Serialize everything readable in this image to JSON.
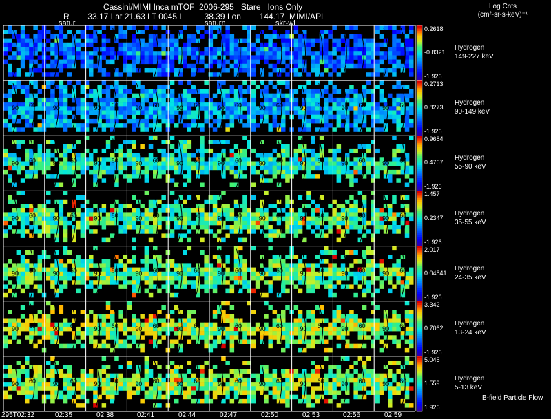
{
  "header": {
    "line1": "Cassini/MIMI Inca mTOF  2006-295   Stare   Ions Only",
    "line2": "R        33.17 Lat 21.63 LT 0045 L         38.39 Lon        144.17  MIMI/APL",
    "annotations": [
      "satur",
      "saturn",
      "skr-wl"
    ]
  },
  "units": {
    "line1": "Log Cnts",
    "line2": "(cm²-sr-s-keV)⁻¹"
  },
  "footer_note": "B-field Particle Flow",
  "chart_data": {
    "type": "heatmap",
    "time_labels": [
      "295T02:32",
      "02:35",
      "02:38",
      "02:41",
      "02:44",
      "02:47",
      "02:50",
      "02:53",
      "02:56",
      "02:59"
    ],
    "bands": [
      {
        "species": "Hydrogen",
        "energy": "149-227 keV",
        "max": "0.2618",
        "mid": "-0.8321",
        "min": "-1.926",
        "level": 0.3
      },
      {
        "species": "Hydrogen",
        "energy": "90-149 keV",
        "max": "0.2713",
        "mid": "0.8273",
        "min": "-1.926",
        "level": 0.4
      },
      {
        "species": "Hydrogen",
        "energy": "55-90 keV",
        "max": "0.9684",
        "mid": "0.4767",
        "min": "-1.926",
        "level": 0.55
      },
      {
        "species": "Hydrogen",
        "energy": "35-55 keV",
        "max": "1.457",
        "mid": "0.2347",
        "min": "-1.926",
        "level": 0.6
      },
      {
        "species": "Hydrogen",
        "energy": "24-35 keV",
        "max": "2.017",
        "mid": "0.04541",
        "min": "-1.926",
        "level": 0.62
      },
      {
        "species": "Hydrogen",
        "energy": "13-24 keV",
        "max": "3.342",
        "mid": "0.7062",
        "min": "-1.926",
        "level": 0.68
      },
      {
        "species": "Hydrogen",
        "energy": "5-13 keV",
        "max": "5.045",
        "mid": "1.559",
        "min": "1.926",
        "level": 0.66
      }
    ],
    "contour_labels": [
      "90",
      "60"
    ]
  },
  "colors": {
    "background": "#000000",
    "grid": "#ffffff",
    "contour": "#000000"
  }
}
